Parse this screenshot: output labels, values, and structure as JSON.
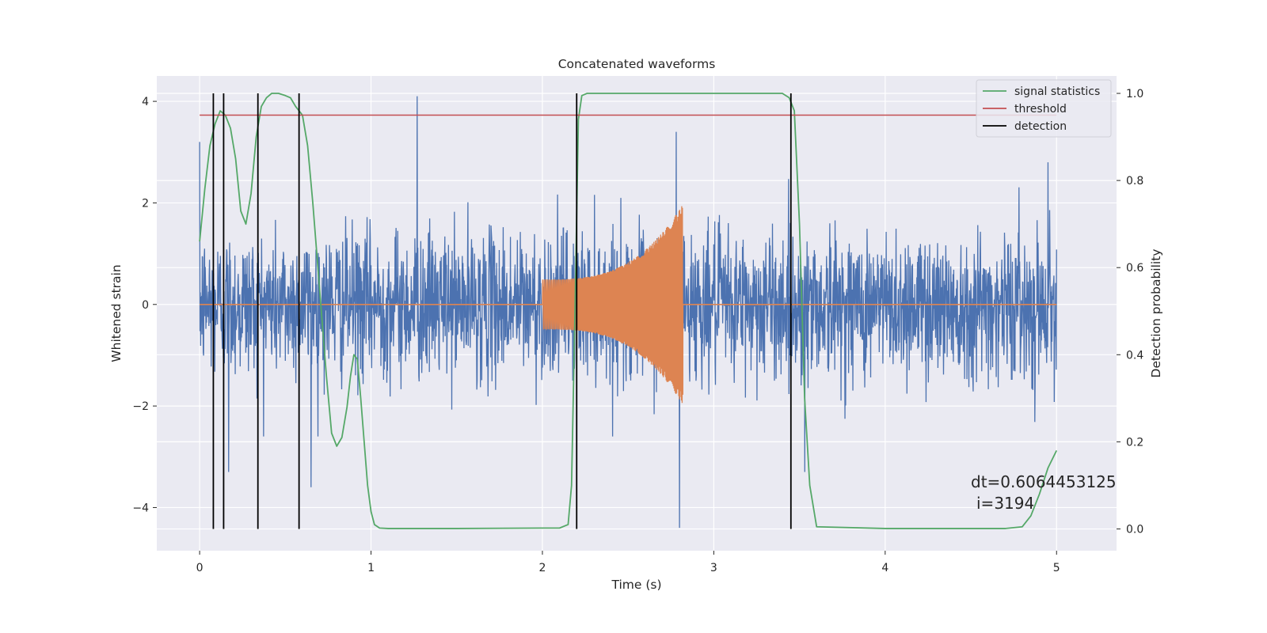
{
  "chart_data": {
    "type": "line",
    "title": "Concatenated waveforms",
    "xlabel": "Time (s)",
    "ylabel_left": "Whitened strain",
    "ylabel_right": "Detection probability",
    "xlim": [
      -0.25,
      5.35
    ],
    "ylim_left": [
      -4.85,
      4.5
    ],
    "ylim_right": [
      -0.05,
      1.04
    ],
    "x_ticks": [
      0,
      1,
      2,
      3,
      4,
      5
    ],
    "x_tick_labels": [
      "0",
      "1",
      "2",
      "3",
      "4",
      "5"
    ],
    "y_left_ticks": [
      -4,
      -2,
      0,
      2,
      4
    ],
    "y_left_tick_labels": [
      "−4",
      "−2",
      "0",
      "2",
      "4"
    ],
    "y_right_ticks": [
      0.0,
      0.2,
      0.4,
      0.6,
      0.8,
      1.0
    ],
    "y_right_tick_labels": [
      "0.0",
      "0.2",
      "0.4",
      "0.6",
      "0.8",
      "1.0"
    ],
    "grid": true,
    "legend_position": "top-right",
    "colors": {
      "background": "#eaeaf2",
      "strain": "#4c72b0",
      "template": "#dd8452",
      "signal_statistics": "#55a868",
      "threshold": "#c44e52",
      "detection": "#000000"
    },
    "series": [
      {
        "name": "",
        "axis": "left",
        "kind": "noise",
        "x_range": [
          0,
          5
        ],
        "envelope_abs": 2.6,
        "peaks": [
          {
            "x": 0.0,
            "y": 3.2
          },
          {
            "x": 1.27,
            "y": 4.1
          },
          {
            "x": 2.78,
            "y": 3.4
          },
          {
            "x": 2.8,
            "y": -4.4
          },
          {
            "x": 0.17,
            "y": -3.3
          },
          {
            "x": 0.65,
            "y": -3.6
          },
          {
            "x": 3.53,
            "y": -3.3
          },
          {
            "x": 4.95,
            "y": 2.8
          }
        ]
      },
      {
        "name": "",
        "axis": "left",
        "kind": "chirp",
        "x_range": [
          2.0,
          2.82
        ],
        "amplitude_start": 0.6,
        "amplitude_end": 2.4,
        "baseline": 0
      },
      {
        "name": "signal statistics",
        "axis": "right",
        "x": [
          0.0,
          0.03,
          0.06,
          0.09,
          0.12,
          0.15,
          0.18,
          0.21,
          0.24,
          0.27,
          0.3,
          0.33,
          0.36,
          0.39,
          0.42,
          0.46,
          0.5,
          0.53,
          0.56,
          0.6,
          0.63,
          0.66,
          0.7,
          0.74,
          0.77,
          0.8,
          0.83,
          0.86,
          0.88,
          0.9,
          0.92,
          0.94,
          0.96,
          0.98,
          1.0,
          1.02,
          1.05,
          1.1,
          1.5,
          2.0,
          2.1,
          2.15,
          2.17,
          2.19,
          2.21,
          2.23,
          2.26,
          2.3,
          2.5,
          3.0,
          3.4,
          3.44,
          3.47,
          3.5,
          3.53,
          3.56,
          3.6,
          4.0,
          4.7,
          4.8,
          4.85,
          4.9,
          4.95,
          5.0
        ],
        "y": [
          0.66,
          0.78,
          0.88,
          0.93,
          0.96,
          0.95,
          0.92,
          0.85,
          0.73,
          0.7,
          0.77,
          0.9,
          0.97,
          0.99,
          1.0,
          1.0,
          0.995,
          0.99,
          0.97,
          0.95,
          0.88,
          0.75,
          0.55,
          0.35,
          0.22,
          0.19,
          0.21,
          0.28,
          0.35,
          0.4,
          0.39,
          0.3,
          0.2,
          0.1,
          0.04,
          0.01,
          0.002,
          0.001,
          0.001,
          0.002,
          0.002,
          0.01,
          0.1,
          0.5,
          0.94,
          0.995,
          1.0,
          1.0,
          1.0,
          1.0,
          1.0,
          0.99,
          0.96,
          0.7,
          0.3,
          0.1,
          0.005,
          0.001,
          0.001,
          0.005,
          0.03,
          0.08,
          0.14,
          0.18
        ]
      },
      {
        "name": "threshold",
        "axis": "right",
        "x": [
          0,
          5
        ],
        "y": [
          0.95,
          0.95
        ]
      }
    ],
    "detections": {
      "name": "detection",
      "x": [
        0.08,
        0.14,
        0.34,
        0.58,
        2.2,
        3.45
      ]
    },
    "annotation": {
      "text_dt": "dt=0.6064453125",
      "text_i": "i=3194"
    },
    "legend": [
      "signal statistics",
      "threshold",
      "detection"
    ]
  }
}
